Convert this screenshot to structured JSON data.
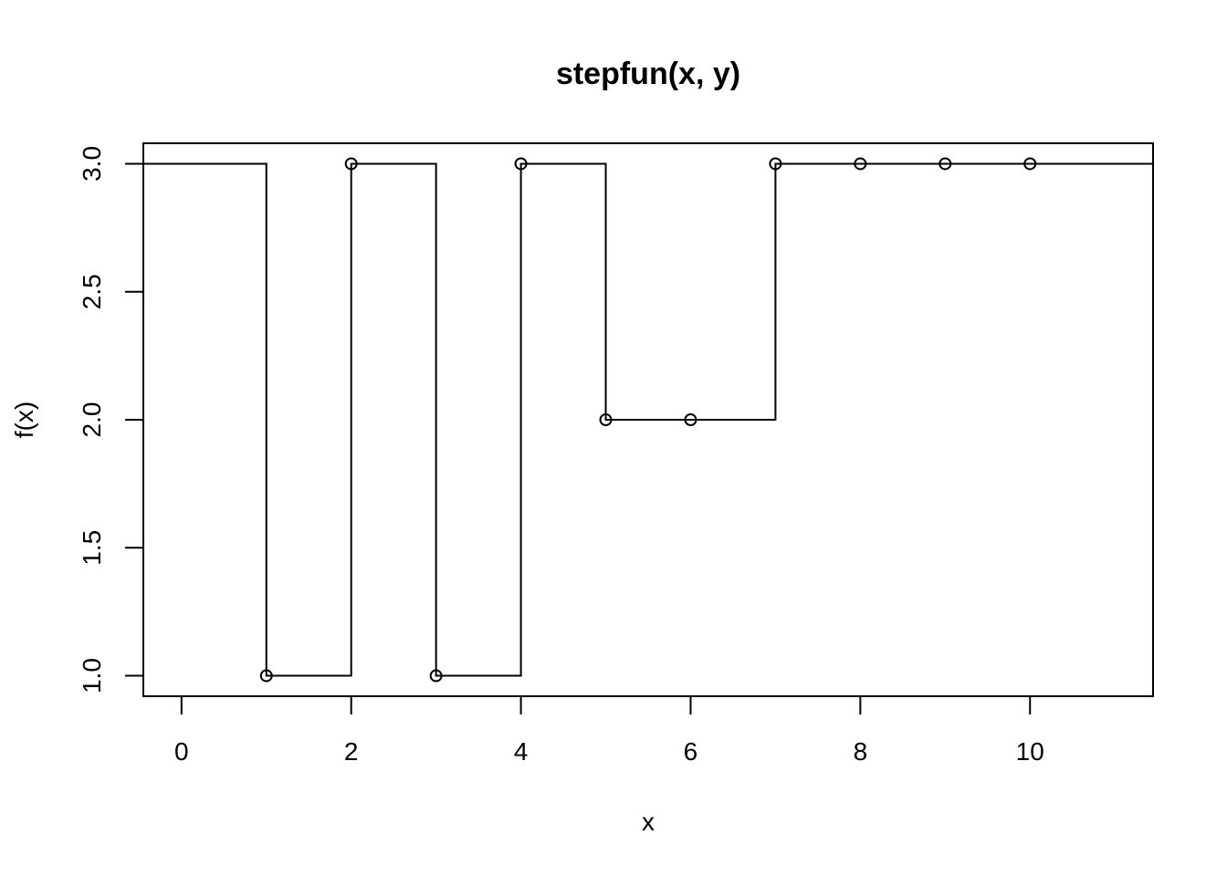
{
  "chart_data": {
    "type": "line",
    "subtype": "step",
    "title": "stepfun(x, y)",
    "xlabel": "x",
    "ylabel": "f(x)",
    "xlim": [
      -0.45,
      11.45
    ],
    "ylim": [
      0.92,
      3.08
    ],
    "xticks": [
      0,
      2,
      4,
      6,
      8,
      10
    ],
    "yticks": [
      1.0,
      1.5,
      2.0,
      2.5,
      3.0
    ],
    "ytick_labels": [
      "1.0",
      "1.5",
      "2.0",
      "2.5",
      "3.0"
    ],
    "left_value": 3,
    "knots": [
      {
        "x": 1,
        "y": 1
      },
      {
        "x": 2,
        "y": 3
      },
      {
        "x": 3,
        "y": 1
      },
      {
        "x": 4,
        "y": 3
      },
      {
        "x": 5,
        "y": 2
      },
      {
        "x": 6,
        "y": 2
      },
      {
        "x": 7,
        "y": 3
      },
      {
        "x": 8,
        "y": 3
      },
      {
        "x": 9,
        "y": 3
      },
      {
        "x": 10,
        "y": 3
      }
    ],
    "grid": false,
    "legend": "none"
  }
}
